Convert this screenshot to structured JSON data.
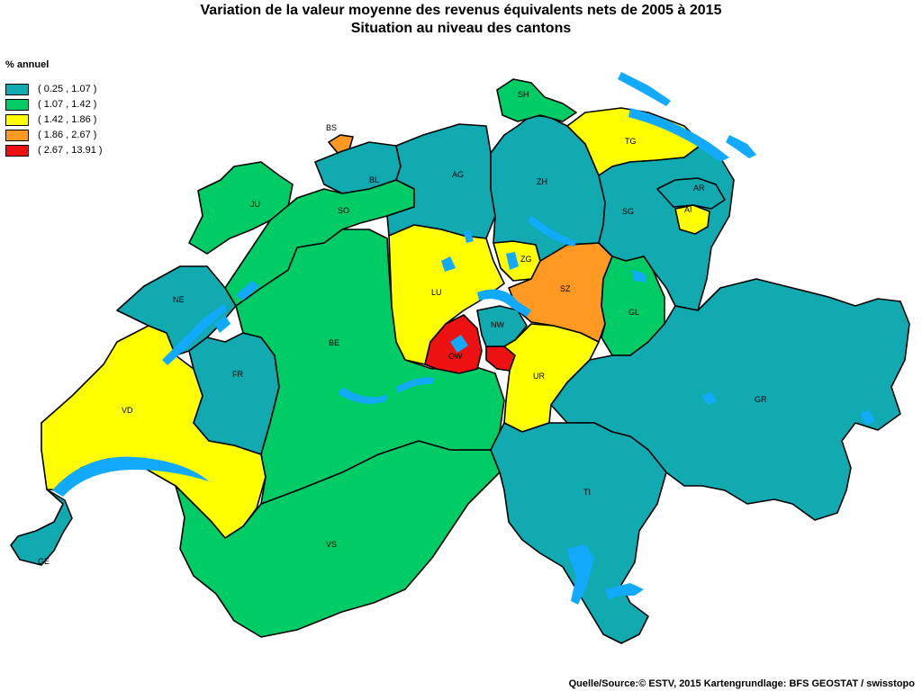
{
  "title": {
    "line1": "Variation de la valeur moyenne des revenus équivalents nets de 2005 à 2015",
    "line2": "Situation au niveau des cantons"
  },
  "legend": {
    "title": "% annuel",
    "classes": [
      {
        "range": "( 0.25 , 1.07 )",
        "color": "#12aab1"
      },
      {
        "range": "( 1.07 , 1.42 )",
        "color": "#00cc66"
      },
      {
        "range": "( 1.42 , 1.86 )",
        "color": "#ffff00"
      },
      {
        "range": "( 1.86 , 2.67 )",
        "color": "#ff9922"
      },
      {
        "range": "( 2.67 , 13.91 )",
        "color": "#ee1111"
      }
    ]
  },
  "cantons": [
    {
      "code": "GE",
      "class": 0
    },
    {
      "code": "VD",
      "class": 2
    },
    {
      "code": "VS",
      "class": 1
    },
    {
      "code": "NE",
      "class": 0
    },
    {
      "code": "FR",
      "class": 0
    },
    {
      "code": "BE",
      "class": 1
    },
    {
      "code": "JU",
      "class": 1
    },
    {
      "code": "SO",
      "class": 1
    },
    {
      "code": "BS",
      "class": 3
    },
    {
      "code": "BL",
      "class": 0
    },
    {
      "code": "AG",
      "class": 0
    },
    {
      "code": "LU",
      "class": 2
    },
    {
      "code": "OW",
      "class": 4
    },
    {
      "code": "NW",
      "class": 0
    },
    {
      "code": "UR",
      "class": 2
    },
    {
      "code": "ZG",
      "class": 2
    },
    {
      "code": "SZ",
      "class": 3
    },
    {
      "code": "ZH",
      "class": 0
    },
    {
      "code": "SH",
      "class": 1
    },
    {
      "code": "TG",
      "class": 2
    },
    {
      "code": "SG",
      "class": 0
    },
    {
      "code": "AR",
      "class": 0
    },
    {
      "code": "AI",
      "class": 2
    },
    {
      "code": "GL",
      "class": 1
    },
    {
      "code": "GR",
      "class": 0
    },
    {
      "code": "TI",
      "class": 0
    }
  ],
  "source": "Quelle/Source:© ESTV, 2015 Kartengrundlage: BFS GEOSTAT / swisstopo"
}
